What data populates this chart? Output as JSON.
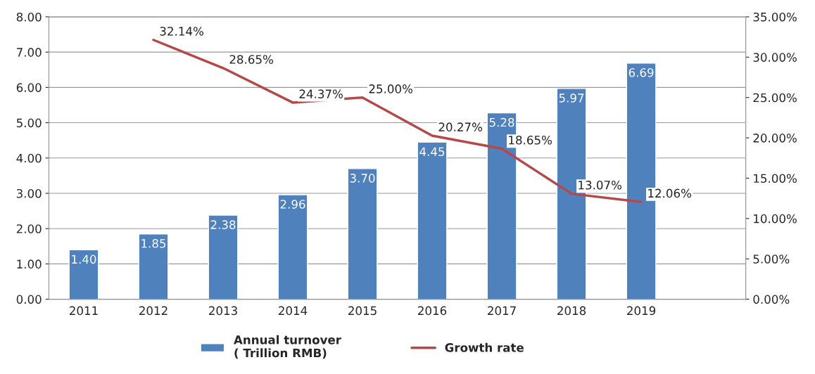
{
  "chart_data": {
    "type": "bar",
    "categories": [
      "2011",
      "2012",
      "2013",
      "2014",
      "2015",
      "2016",
      "2017",
      "2018",
      "2019",
      null
    ],
    "series": [
      {
        "name": "Annual turnover\n( Trillion RMB)",
        "color": "#4f81bd",
        "values": [
          1.4,
          1.85,
          2.38,
          2.96,
          3.7,
          4.45,
          5.28,
          5.97,
          6.69,
          null
        ],
        "value_labels": [
          "1.40",
          "1.85",
          "2.38",
          "2.96",
          "3.70",
          "4.45",
          "5.28",
          "5.97",
          "6.69",
          null
        ]
      },
      {
        "name": "Growth rate",
        "type": "line",
        "axis": "y2",
        "color": "#b5494a",
        "values": [
          null,
          32.14,
          28.65,
          24.37,
          25.0,
          20.27,
          18.65,
          13.07,
          12.06,
          null
        ],
        "value_labels": [
          null,
          "32.14%",
          "28.65%",
          "24.37%",
          "25.00%",
          "20.27%",
          "18.65%",
          "13.07%",
          "12.06%",
          null
        ]
      }
    ],
    "ylim": [
      0,
      8
    ],
    "yticks": [
      {
        "value": 0,
        "label": "0.00"
      },
      {
        "value": 1,
        "label": "1.00"
      },
      {
        "value": 2,
        "label": "2.00"
      },
      {
        "value": 3,
        "label": "3.00"
      },
      {
        "value": 4,
        "label": "4.00"
      },
      {
        "value": 5,
        "label": "5.00"
      },
      {
        "value": 6,
        "label": "6.00"
      },
      {
        "value": 7,
        "label": "7.00"
      },
      {
        "value": 8,
        "label": "8.00"
      }
    ],
    "y2lim": [
      0,
      35
    ],
    "y2ticks": [
      {
        "value": 0,
        "label": "0.00%"
      },
      {
        "value": 5,
        "label": "5.00%"
      },
      {
        "value": 10,
        "label": "10.00%"
      },
      {
        "value": 15,
        "label": "15.00%"
      },
      {
        "value": 20,
        "label": "20.00%"
      },
      {
        "value": 25,
        "label": "25.00%"
      },
      {
        "value": 30,
        "label": "30.00%"
      },
      {
        "value": 35,
        "label": "35.00%"
      }
    ],
    "grid": "y",
    "legend": "bottom",
    "marker": "none",
    "line_style": "solid"
  }
}
